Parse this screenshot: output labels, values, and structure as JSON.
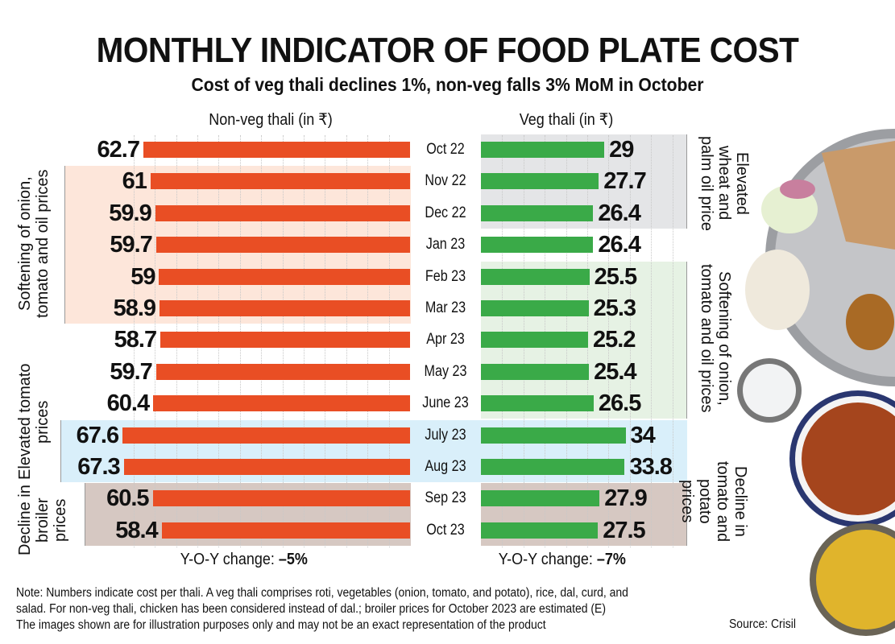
{
  "title": "MONTHLY INDICATOR OF FOOD PLATE COST",
  "subtitle": "Cost of veg thali declines 1%, non-veg falls 3% MoM in October",
  "chart_data": [
    {
      "type": "bar",
      "orientation": "horizontal",
      "title": "Non-veg thali (in ₹)",
      "categories": [
        "Oct 22",
        "Nov 22",
        "Dec 22",
        "Jan 23",
        "Feb 23",
        "Mar 23",
        "Apr 23",
        "May 23",
        "June 23",
        "July 23",
        "Aug 23",
        "Sep 23",
        "Oct 23"
      ],
      "values": [
        62.7,
        61,
        59.9,
        59.7,
        59,
        58.9,
        58.7,
        59.7,
        60.4,
        67.6,
        67.3,
        60.5,
        58.4
      ],
      "color": "#e94e24",
      "direction": "right-to-left",
      "footer": "Y-O-Y change: ",
      "footer_value": "–5%",
      "annotations": [
        {
          "text": "Softening of onion, tomato and oil prices",
          "from": "Nov 22",
          "to": "Mar 23",
          "color": "#fde6da"
        },
        {
          "text": "Elevated tomato prices",
          "from": "July 23",
          "to": "Aug 23",
          "color": "#d9effa"
        },
        {
          "text": "Decline in broiler prices",
          "from": "Sep 23",
          "to": "Oct 23",
          "color": "#d6c8c2"
        }
      ]
    },
    {
      "type": "bar",
      "orientation": "horizontal",
      "title": "Veg thali (in ₹)",
      "categories": [
        "Oct 22",
        "Nov 22",
        "Dec 22",
        "Jan 23",
        "Feb 23",
        "Mar 23",
        "Apr 23",
        "May 23",
        "June 23",
        "July 23",
        "Aug 23",
        "Sep 23",
        "Oct 23"
      ],
      "values": [
        29,
        27.7,
        26.4,
        26.4,
        25.5,
        25.3,
        25.2,
        25.4,
        26.5,
        34,
        33.8,
        27.9,
        27.5
      ],
      "color": "#3aaa48",
      "direction": "left-to-right",
      "footer": "Y-O-Y change: ",
      "footer_value": "–7%",
      "annotations": [
        {
          "text": "Elevated wheat and palm oil price",
          "from": "Oct 22",
          "to": "Dec 22",
          "color": "#e4e5e7"
        },
        {
          "text": "Softening of onion, tomato and oil prices",
          "from": "Feb 23",
          "to": "June 23",
          "color": "#e6f2e4"
        },
        {
          "text": "Elevated tomato prices",
          "from": "July 23",
          "to": "Aug 23",
          "color": "#d9effa"
        },
        {
          "text": "Decline in tomato and potato prices",
          "from": "Sep 23",
          "to": "Oct 23",
          "color": "#d6c8c2"
        }
      ]
    }
  ],
  "notes": [
    "Note: Numbers indicate cost per thali. A veg thali comprises roti, vegetables (onion, tomato, and potato), rice, dal, curd, and",
    "salad. For non-veg thali, chicken has been considered instead of dal.; broiler prices for October 2023 are estimated (E)",
    "The images shown are for illustration purposes only and may not be an exact representation of the product"
  ],
  "source": "Source: Crisil",
  "images": [
    "thali-plate-image",
    "curd-bowl-image",
    "chicken-curry-image",
    "dal-bowl-image"
  ]
}
